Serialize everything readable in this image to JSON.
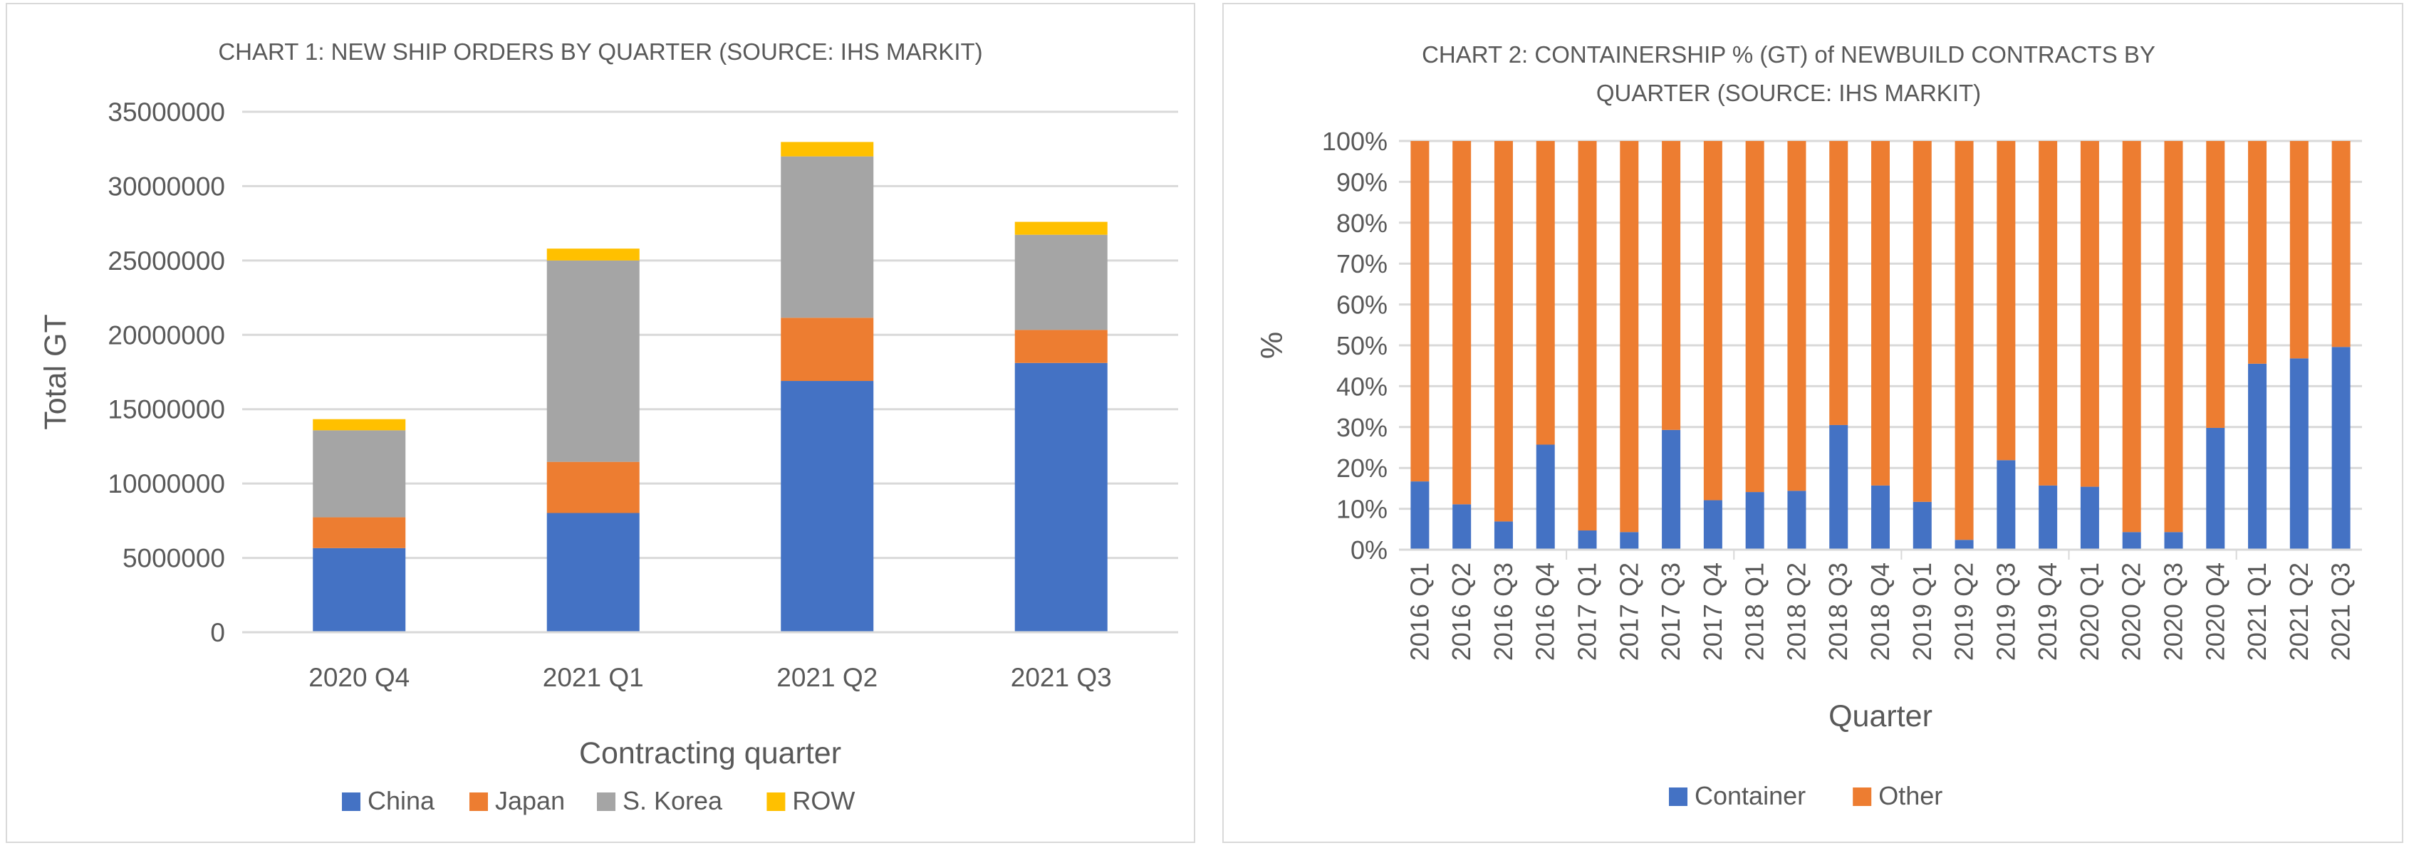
{
  "chart_data": [
    {
      "type": "bar",
      "stacked": true,
      "title": "CHART 1: NEW SHIP ORDERS BY QUARTER (SOURCE: IHS MARKIT)",
      "xlabel": "Contracting quarter",
      "ylabel": "Total GT",
      "ylim": [
        0,
        35000000
      ],
      "yticks": [
        "0",
        "5000000",
        "10000000",
        "15000000",
        "20000000",
        "25000000",
        "30000000",
        "35000000"
      ],
      "ytick_values": [
        0,
        5000000,
        10000000,
        15000000,
        20000000,
        25000000,
        30000000,
        35000000
      ],
      "grid": true,
      "legend": "bottom",
      "categories": [
        "2020 Q4",
        "2021 Q1",
        "2021 Q2",
        "2021 Q3"
      ],
      "series": [
        {
          "name": "China",
          "color": "#4472c4",
          "values": [
            5660000,
            8020000,
            16900000,
            18110000
          ]
        },
        {
          "name": "Japan",
          "color": "#ed7d31",
          "values": [
            2070000,
            3440000,
            4250000,
            2220000
          ]
        },
        {
          "name": "S. Korea",
          "color": "#a5a5a5",
          "values": [
            5850000,
            13540000,
            10850000,
            6400000
          ]
        },
        {
          "name": "ROW",
          "color": "#ffc000",
          "values": [
            750000,
            800000,
            970000,
            870000
          ]
        }
      ]
    },
    {
      "type": "bar",
      "stacked": true,
      "title": "CHART 2: CONTAINERSHIP % (GT) of NEWBUILD CONTRACTS BY QUARTER (SOURCE: IHS MARKIT)",
      "title_lines": [
        "CHART 2: CONTAINERSHIP % (GT) of NEWBUILD CONTRACTS BY",
        "QUARTER (SOURCE: IHS MARKIT)"
      ],
      "xlabel": "Quarter",
      "ylabel": "%",
      "ylim": [
        0,
        100
      ],
      "yticks": [
        "0%",
        "10%",
        "20%",
        "30%",
        "40%",
        "50%",
        "60%",
        "70%",
        "80%",
        "90%",
        "100%"
      ],
      "ytick_values": [
        0,
        10,
        20,
        30,
        40,
        50,
        60,
        70,
        80,
        90,
        100
      ],
      "grid": true,
      "legend": "bottom",
      "categories": [
        "2016 Q1",
        "2016 Q2",
        "2016 Q3",
        "2016 Q4",
        "2017 Q1",
        "2017 Q2",
        "2017 Q3",
        "2017 Q4",
        "2018 Q1",
        "2018 Q2",
        "2018 Q3",
        "2018 Q4",
        "2019 Q1",
        "2019 Q2",
        "2019 Q3",
        "2019 Q4",
        "2020 Q1",
        "2020 Q2",
        "2020 Q3",
        "2020 Q4",
        "2021 Q1",
        "2021 Q2",
        "2021 Q3"
      ],
      "series": [
        {
          "name": "Container",
          "color": "#4472c4",
          "values": [
            16.7,
            11.1,
            6.9,
            25.7,
            4.7,
            4.3,
            29.3,
            12.1,
            14.1,
            14.4,
            30.5,
            15.7,
            11.7,
            2.4,
            21.9,
            15.7,
            15.4,
            4.3,
            4.3,
            29.8,
            45.5,
            46.8,
            49.6
          ]
        },
        {
          "name": "Other",
          "color": "#ed7d31",
          "values": [
            83.3,
            88.9,
            93.1,
            74.3,
            95.3,
            95.7,
            70.7,
            87.9,
            85.9,
            85.6,
            69.5,
            84.3,
            88.3,
            97.6,
            78.1,
            84.3,
            84.6,
            95.7,
            95.7,
            70.2,
            54.5,
            53.2,
            50.4
          ]
        }
      ]
    }
  ]
}
